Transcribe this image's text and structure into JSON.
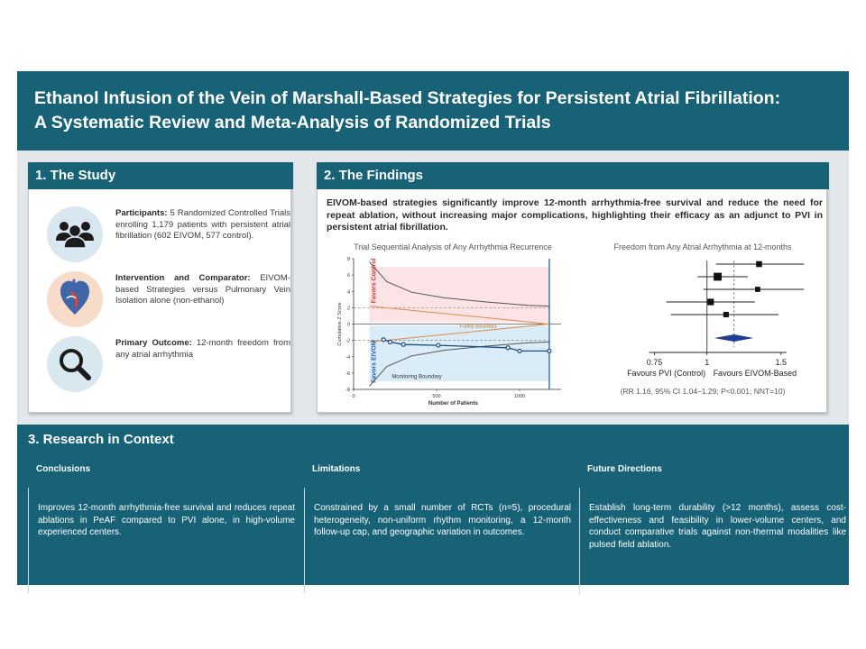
{
  "title": {
    "line1": "Ethanol Infusion of the Vein of Marshall-Based Strategies for Persistent Atrial Fibrillation:",
    "line2": "A Systematic Review and Meta-Analysis of Randomized Trials"
  },
  "study": {
    "heading": "1. The Study",
    "items": [
      {
        "icon": "people-icon",
        "label": "Participants:",
        "text": " 5 Randomized Controlled Trials enrolling 1,179 patients with persistent atrial fibrillation (602 EIVOM, 577 control)."
      },
      {
        "icon": "heart-icon",
        "label": "Intervention and Comparator:",
        "text": " EIVOM-based Strategies versus Pulmonary Vein Isolation alone (non-ethanol)"
      },
      {
        "icon": "magnifier-icon",
        "label": "Primary Outcome:",
        "text": " 12-month freedom from any atrial arrhythmia"
      }
    ]
  },
  "findings": {
    "heading": "2. The Findings",
    "summary": "EIVOM-based strategies significantly improve 12-month arrhythmia-free survival and reduce the need for repeat ablation, without increasing major complications, highlighting their efficacy as an adjunct to PVI in persistent atrial fibrillation.",
    "tsa_title": "Trial Sequential Analysis of Any Arrhythmia Recurrence",
    "forest_title": "Freedom from Any Atrial Arrhythmia at 12-months",
    "forest_stats": "(RR 1.16, 95% CI 1.04–1.29; P<0.001; NNT=10)"
  },
  "context": {
    "heading": "3. Research in Context",
    "columns": [
      {
        "title": "Conclusions",
        "text": "Improves 12-month arrhythmia-free survival and reduces repeat ablations in PeAF compared to PVI alone, in high-volume experienced centers."
      },
      {
        "title": "Limitations",
        "text": "Constrained by a small number of RCTs (n=5), procedural heterogeneity, non-uniform rhythm monitoring, a 12-month follow-up cap, and geographic variation in outcomes."
      },
      {
        "title": "Future Directions",
        "text": "Establish long-term durability (>12 months), assess cost-effectiveness and feasibility in lower-volume centers, and conduct comparative trials against non-thermal modalities like pulsed field ablation."
      }
    ]
  },
  "colors": {
    "teal": "#186277",
    "control_zone": "#fbe3e6",
    "eivom_zone": "#d9ecf7",
    "summary_diamond": "#1f3e8f"
  },
  "chart_data": [
    {
      "type": "line",
      "title": "Trial Sequential Analysis of Any Arrhythmia Recurrence",
      "xlabel": "Number of Patients",
      "ylabel": "Cumulative Z Score",
      "xlim": [
        0,
        1250
      ],
      "ylim": [
        -8,
        8
      ],
      "x_ticks": [
        "0",
        "500",
        "1000"
      ],
      "y_ticks": [
        "8",
        "6",
        "4",
        "2",
        "0",
        "-2",
        "-4",
        "-6",
        "-8"
      ],
      "zone_labels": {
        "upper": "Favors Control",
        "lower": "Favors EIVOM"
      },
      "annotations": [
        "Futility Boundary",
        "Monitoring Boundary"
      ],
      "series": [
        {
          "name": "",
          "x": [
            180,
            220,
            300,
            510,
            930,
            1000,
            1179
          ],
          "y": [
            -1.9,
            -2.2,
            -2.5,
            -2.6,
            -2.9,
            -3.3,
            -3.3
          ]
        }
      ],
      "boundaries": {
        "monitoring_upper": {
          "x": [
            95,
            200,
            350,
            550,
            800,
            1050,
            1179
          ],
          "y": [
            7.6,
            5.2,
            3.9,
            3.2,
            2.7,
            2.3,
            2.2
          ]
        },
        "monitoring_lower": {
          "x": [
            95,
            200,
            350,
            550,
            800,
            1050,
            1179
          ],
          "y": [
            -7.6,
            -5.2,
            -3.9,
            -3.2,
            -2.7,
            -2.3,
            -2.2
          ]
        },
        "futility_upper": {
          "x": [
            95,
            1179
          ],
          "y": [
            2.2,
            0
          ]
        },
        "futility_lower": {
          "x": [
            95,
            1179
          ],
          "y": [
            -2.2,
            0
          ]
        },
        "conventional": [
          1.96,
          -1.96
        ]
      }
    },
    {
      "type": "scatter",
      "title": "Freedom from Any Atrial Arrhythmia at 12-months",
      "xlabel_left": "Favours PVI (Control)",
      "xlabel_right": "Favours EIVOM-Based",
      "x_ticks": [
        "0.75",
        "1",
        "1.5"
      ],
      "log_scale": true,
      "xlim": [
        0.62,
        1.75
      ],
      "studies": [
        {
          "rr": 1.33,
          "ci": [
            1.05,
            1.7
          ],
          "weight": 0.32
        },
        {
          "rr": 1.06,
          "ci": [
            0.95,
            1.25
          ],
          "weight": 0.6
        },
        {
          "rr": 1.32,
          "ci": [
            0.98,
            1.7
          ],
          "weight": 0.22
        },
        {
          "rr": 1.02,
          "ci": [
            0.8,
            1.3
          ],
          "weight": 0.4
        },
        {
          "rr": 1.11,
          "ci": [
            0.82,
            1.48
          ],
          "weight": 0.26
        }
      ],
      "pooled": {
        "rr": 1.16,
        "ci": [
          1.04,
          1.29
        ]
      },
      "stats": "(RR 1.16, 95% CI 1.04–1.29; P<0.001; NNT=10)"
    }
  ]
}
